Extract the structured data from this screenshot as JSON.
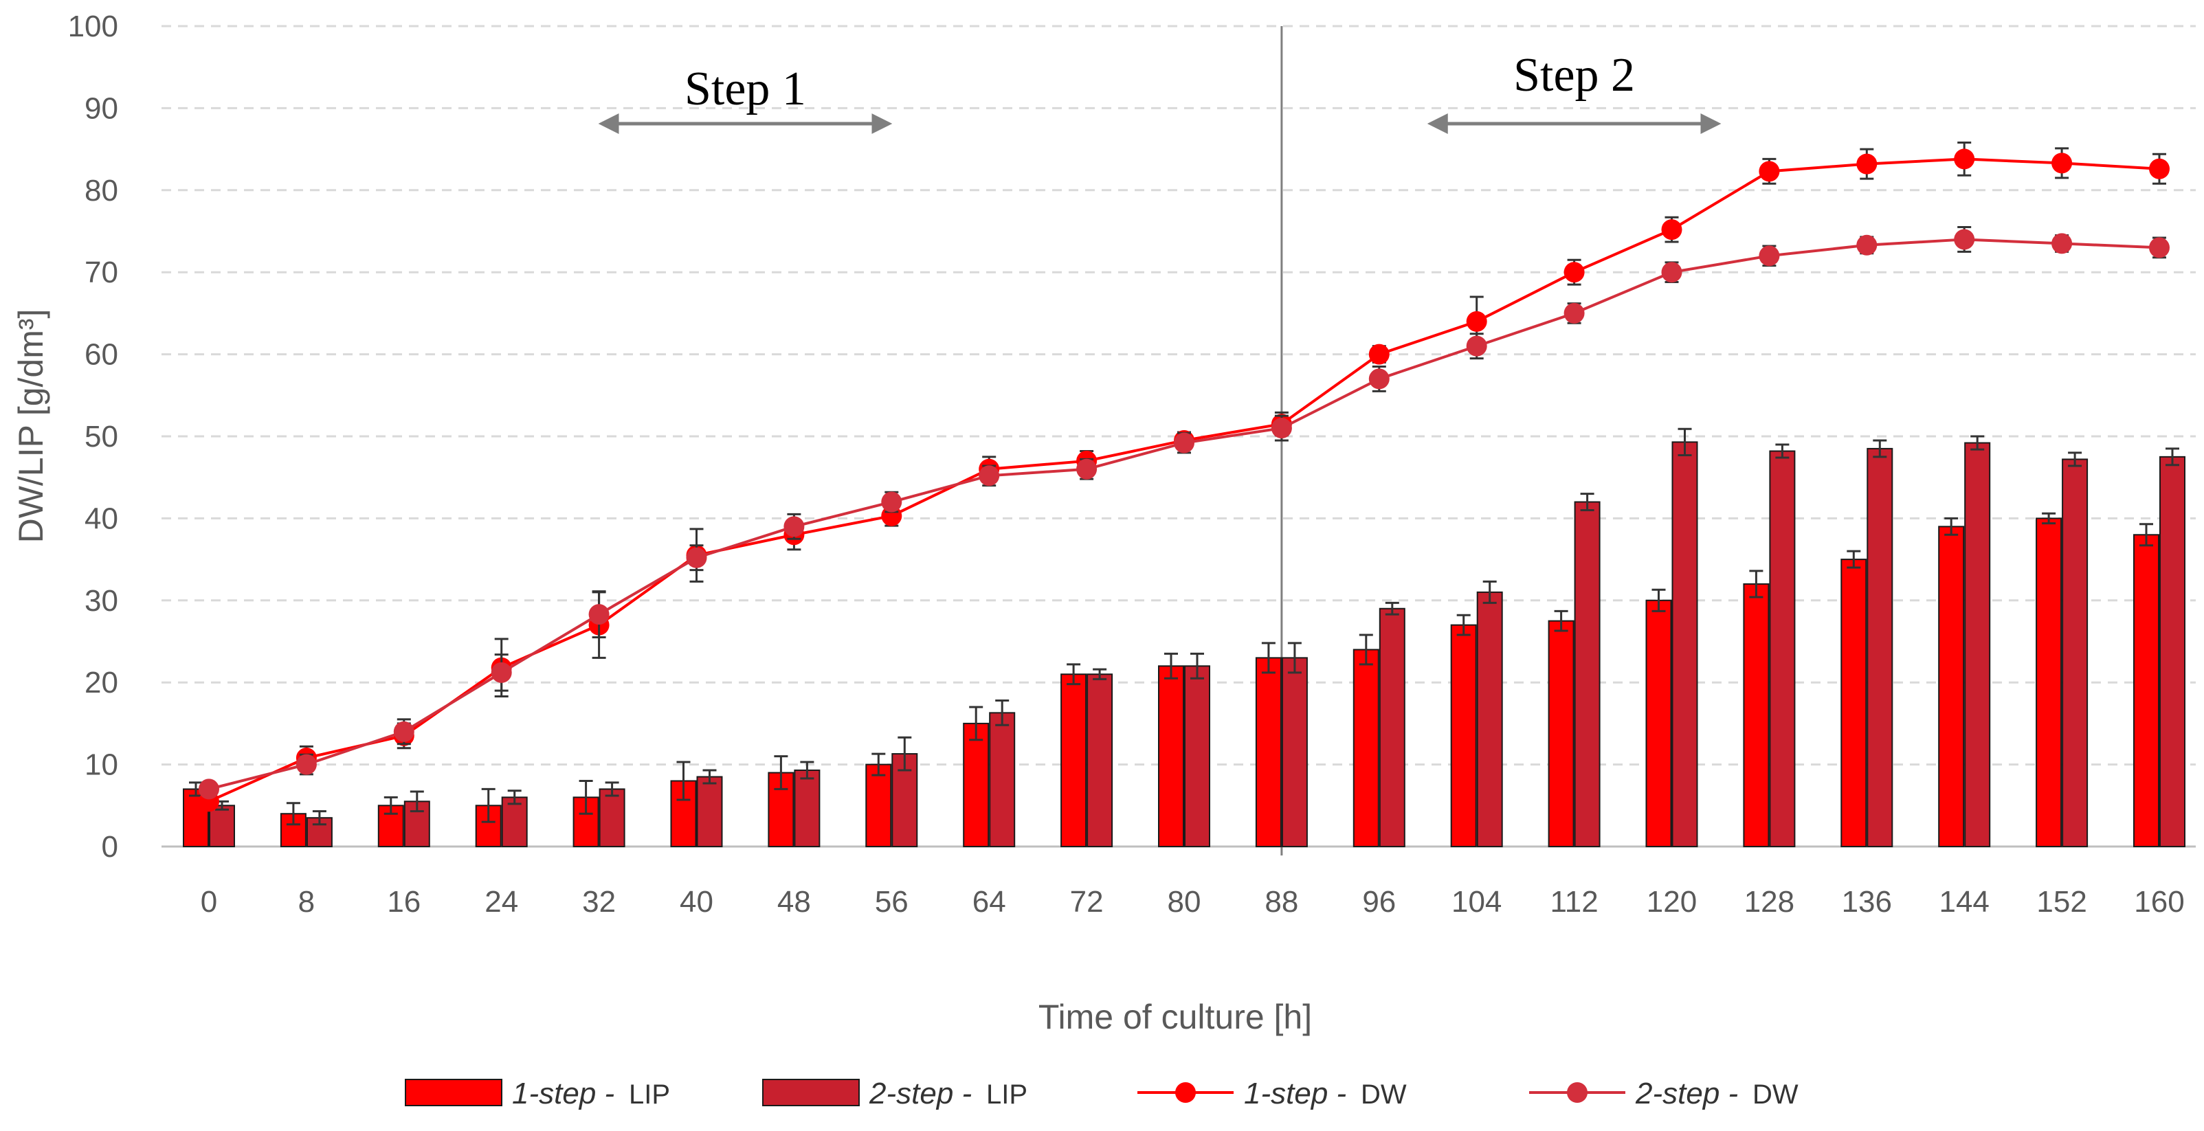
{
  "chart_data": {
    "type": "bar+line",
    "x": [
      0,
      8,
      16,
      24,
      32,
      40,
      48,
      56,
      64,
      72,
      80,
      88,
      96,
      104,
      112,
      120,
      128,
      136,
      144,
      152,
      160
    ],
    "xlabel": "Time of culture [h]",
    "ylabel": "DW/LIP  [g/dm³]",
    "ylim": [
      0,
      100
    ],
    "yticks": [
      0,
      10,
      20,
      30,
      40,
      50,
      60,
      70,
      80,
      90,
      100
    ],
    "grid": "horizontal dashed",
    "legend_position": "bottom",
    "divider_x": 88,
    "annotations": [
      {
        "text": "Step 1",
        "arrow_from": 32,
        "arrow_to": 56
      },
      {
        "text": "Step 2",
        "arrow_from": 100,
        "arrow_to": 124
      }
    ],
    "series": [
      {
        "name_italic": "1-step -",
        "name_suffix": "LIP",
        "kind": "bar",
        "color": "#ff0000",
        "values": [
          7,
          4,
          5,
          5,
          6,
          8,
          9,
          10,
          15,
          21,
          22,
          23,
          24,
          27,
          27.5,
          30,
          32,
          35,
          39,
          40,
          38
        ],
        "errors": [
          0.8,
          1.3,
          1.0,
          2.0,
          2.0,
          2.3,
          2.0,
          1.3,
          2.0,
          1.2,
          1.5,
          1.8,
          1.8,
          1.2,
          1.2,
          1.3,
          1.6,
          1.0,
          1.0,
          0.6,
          1.3
        ]
      },
      {
        "name_italic": "2-step -",
        "name_suffix": "LIP",
        "kind": "bar",
        "color": "#c8202e",
        "values": [
          5,
          3.5,
          5.5,
          6,
          7,
          8.5,
          9.3,
          11.3,
          16.3,
          21,
          22,
          23,
          29,
          31,
          42,
          49.3,
          48.2,
          48.5,
          49.2,
          47.2,
          47.5
        ],
        "errors": [
          0.5,
          0.8,
          1.2,
          0.8,
          0.8,
          0.8,
          1.0,
          2.0,
          1.5,
          0.6,
          1.5,
          1.8,
          0.7,
          1.3,
          1.0,
          1.6,
          0.8,
          1.0,
          0.8,
          0.8,
          1.0
        ]
      },
      {
        "name_italic": "1-step -",
        "name_suffix": "DW",
        "kind": "line",
        "color": "#ff0000",
        "values": [
          5.5,
          10.8,
          13.5,
          21.8,
          27,
          35.5,
          38,
          40.3,
          46,
          47,
          49.5,
          51.5,
          60,
          64,
          70,
          75.2,
          82.3,
          83.2,
          83.8,
          83.3,
          82.6
        ],
        "errors": [
          0.8,
          1.4,
          1.5,
          3.5,
          4.0,
          3.2,
          1.8,
          1.2,
          1.5,
          1.2,
          1.0,
          1.4,
          1.0,
          3.0,
          1.5,
          1.5,
          1.5,
          1.8,
          2.0,
          1.8,
          1.8
        ]
      },
      {
        "name_italic": "2-step -",
        "name_suffix": "DW",
        "kind": "line",
        "color": "#d32f3c",
        "values": [
          7,
          10,
          14,
          21.2,
          28.3,
          35.2,
          39,
          42,
          45.2,
          46,
          49.2,
          51,
          57,
          61,
          65,
          70,
          72,
          73.3,
          74,
          73.5,
          73
        ],
        "errors": [
          0.8,
          1.2,
          1.5,
          2.2,
          2.8,
          1.5,
          1.5,
          1.2,
          1.2,
          1.2,
          1.2,
          1.5,
          1.5,
          1.5,
          1.2,
          1.2,
          1.2,
          1.0,
          1.5,
          1.0,
          1.2
        ]
      }
    ]
  }
}
